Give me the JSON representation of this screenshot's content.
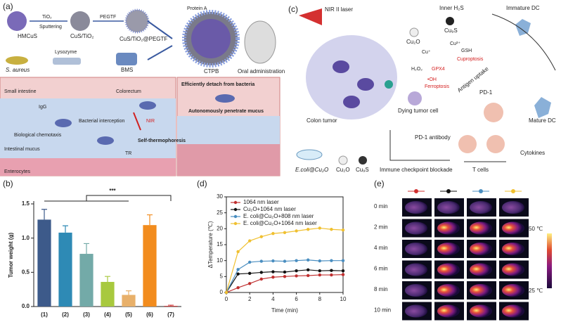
{
  "panel_labels": [
    "(a)",
    "(b)",
    "(c)",
    "(d)",
    "(e)"
  ],
  "panel_a": {
    "labels": [
      "HMCuS",
      "TiO₂",
      "Sputtering",
      "CuS/TiO₂",
      "PEGTF",
      "CuS/TiO₂@PEGTF",
      "Protein A",
      "S. aureus",
      "Lysozyme",
      "BMS",
      "CTPB",
      "Oral administration",
      "Small intestine",
      "Colorectum",
      "IgG",
      "Biological chemotaxis",
      "Intestinal mucus",
      "Bacterial interception",
      "NIR",
      "Self-thermophoresis",
      "Enterocytes",
      "Efficiently detach from bacteria",
      "Autonomously penetrate mucus",
      "TR"
    ]
  },
  "panel_c": {
    "labels": [
      "NIR II laser",
      "Colon tumor",
      "Inner H₂S",
      "Cu₂O",
      "Cu₉S",
      "Immature DC",
      "Cu²⁺",
      "Cu⁺",
      "GSH",
      "Cuproptosis",
      "H₂O₂",
      "GPX4",
      "•OH",
      "Ferroptosis",
      "Antigen uptake",
      "Dying tumor cell",
      "PD-1",
      "Mature DC",
      "PD-1 antibody",
      "Cytokines",
      "Immune checkpoint blockade",
      "T cells",
      "E.coli@Cu₂O",
      "Cu₂O",
      "Cu₉S"
    ]
  },
  "panel_e": {
    "times": [
      "0 min",
      "2 min",
      "4 min",
      "6 min",
      "8 min",
      "10 min"
    ],
    "scale_max": "50 ℃",
    "scale_min": "25 ℃",
    "group_colors": [
      "#d03030",
      "#111111",
      "#4a8ec0",
      "#f0c030"
    ]
  },
  "chart_data": [
    {
      "type": "bar",
      "categories": [
        "(1)",
        "(2)",
        "(3)",
        "(4)",
        "(5)",
        "(6)",
        "(7)"
      ],
      "values": [
        1.27,
        1.08,
        0.77,
        0.36,
        0.17,
        1.19,
        0.01
      ],
      "errors": [
        0.15,
        0.1,
        0.15,
        0.08,
        0.06,
        0.15,
        0.01
      ],
      "colors": [
        "#3d5a8a",
        "#2e8ab5",
        "#73aaa8",
        "#a8c93e",
        "#e8b06a",
        "#f28c1e",
        "#d04040"
      ],
      "ylim": [
        0,
        1.5
      ],
      "yticks": [
        {
          "value": 0,
          "label": "0.0"
        },
        {
          "value": 0.5,
          "label": "0.5"
        },
        {
          "value": 1,
          "label": "1.0"
        },
        {
          "value": 1.5,
          "label": "1.5"
        }
      ],
      "ylabel": "Tumor weight (g)",
      "annotation": "***"
    },
    {
      "type": "line",
      "x": [
        0,
        1,
        2,
        3,
        4,
        5,
        6,
        7,
        8,
        9,
        10
      ],
      "series": [
        {
          "name": "1064 nm laser",
          "color": "#c03030",
          "values": [
            0,
            1.5,
            2.8,
            4.2,
            4.8,
            5.0,
            5.2,
            5.3,
            5.5,
            5.5,
            5.6
          ]
        },
        {
          "name": "Cu₂O+1064 nm laser",
          "color": "#111111",
          "values": [
            0,
            5.8,
            6.0,
            6.3,
            6.5,
            6.4,
            6.8,
            7.1,
            6.8,
            6.9,
            6.8
          ]
        },
        {
          "name": "E. coli@Cu₂O+808 nm laser",
          "color": "#4a8ec0",
          "values": [
            0,
            7.2,
            9.5,
            9.8,
            9.9,
            9.8,
            10.0,
            10.2,
            9.9,
            10.0,
            10.0
          ]
        },
        {
          "name": "E. coli@Cu₂O+1064 nm laser",
          "color": "#f0c030",
          "values": [
            0,
            12.8,
            16.2,
            17.5,
            18.5,
            18.8,
            19.3,
            19.8,
            20.2,
            19.8,
            19.6
          ]
        }
      ],
      "xlim": [
        0,
        10
      ],
      "xticks": [
        0,
        2,
        4,
        6,
        8,
        10
      ],
      "ylim": [
        0,
        30
      ],
      "yticks": [
        0,
        5,
        10,
        15,
        20,
        25,
        30
      ],
      "xlabel": "Time (min)",
      "ylabel": "ΔTemperature (℃)",
      "legend": "upper left"
    }
  ]
}
